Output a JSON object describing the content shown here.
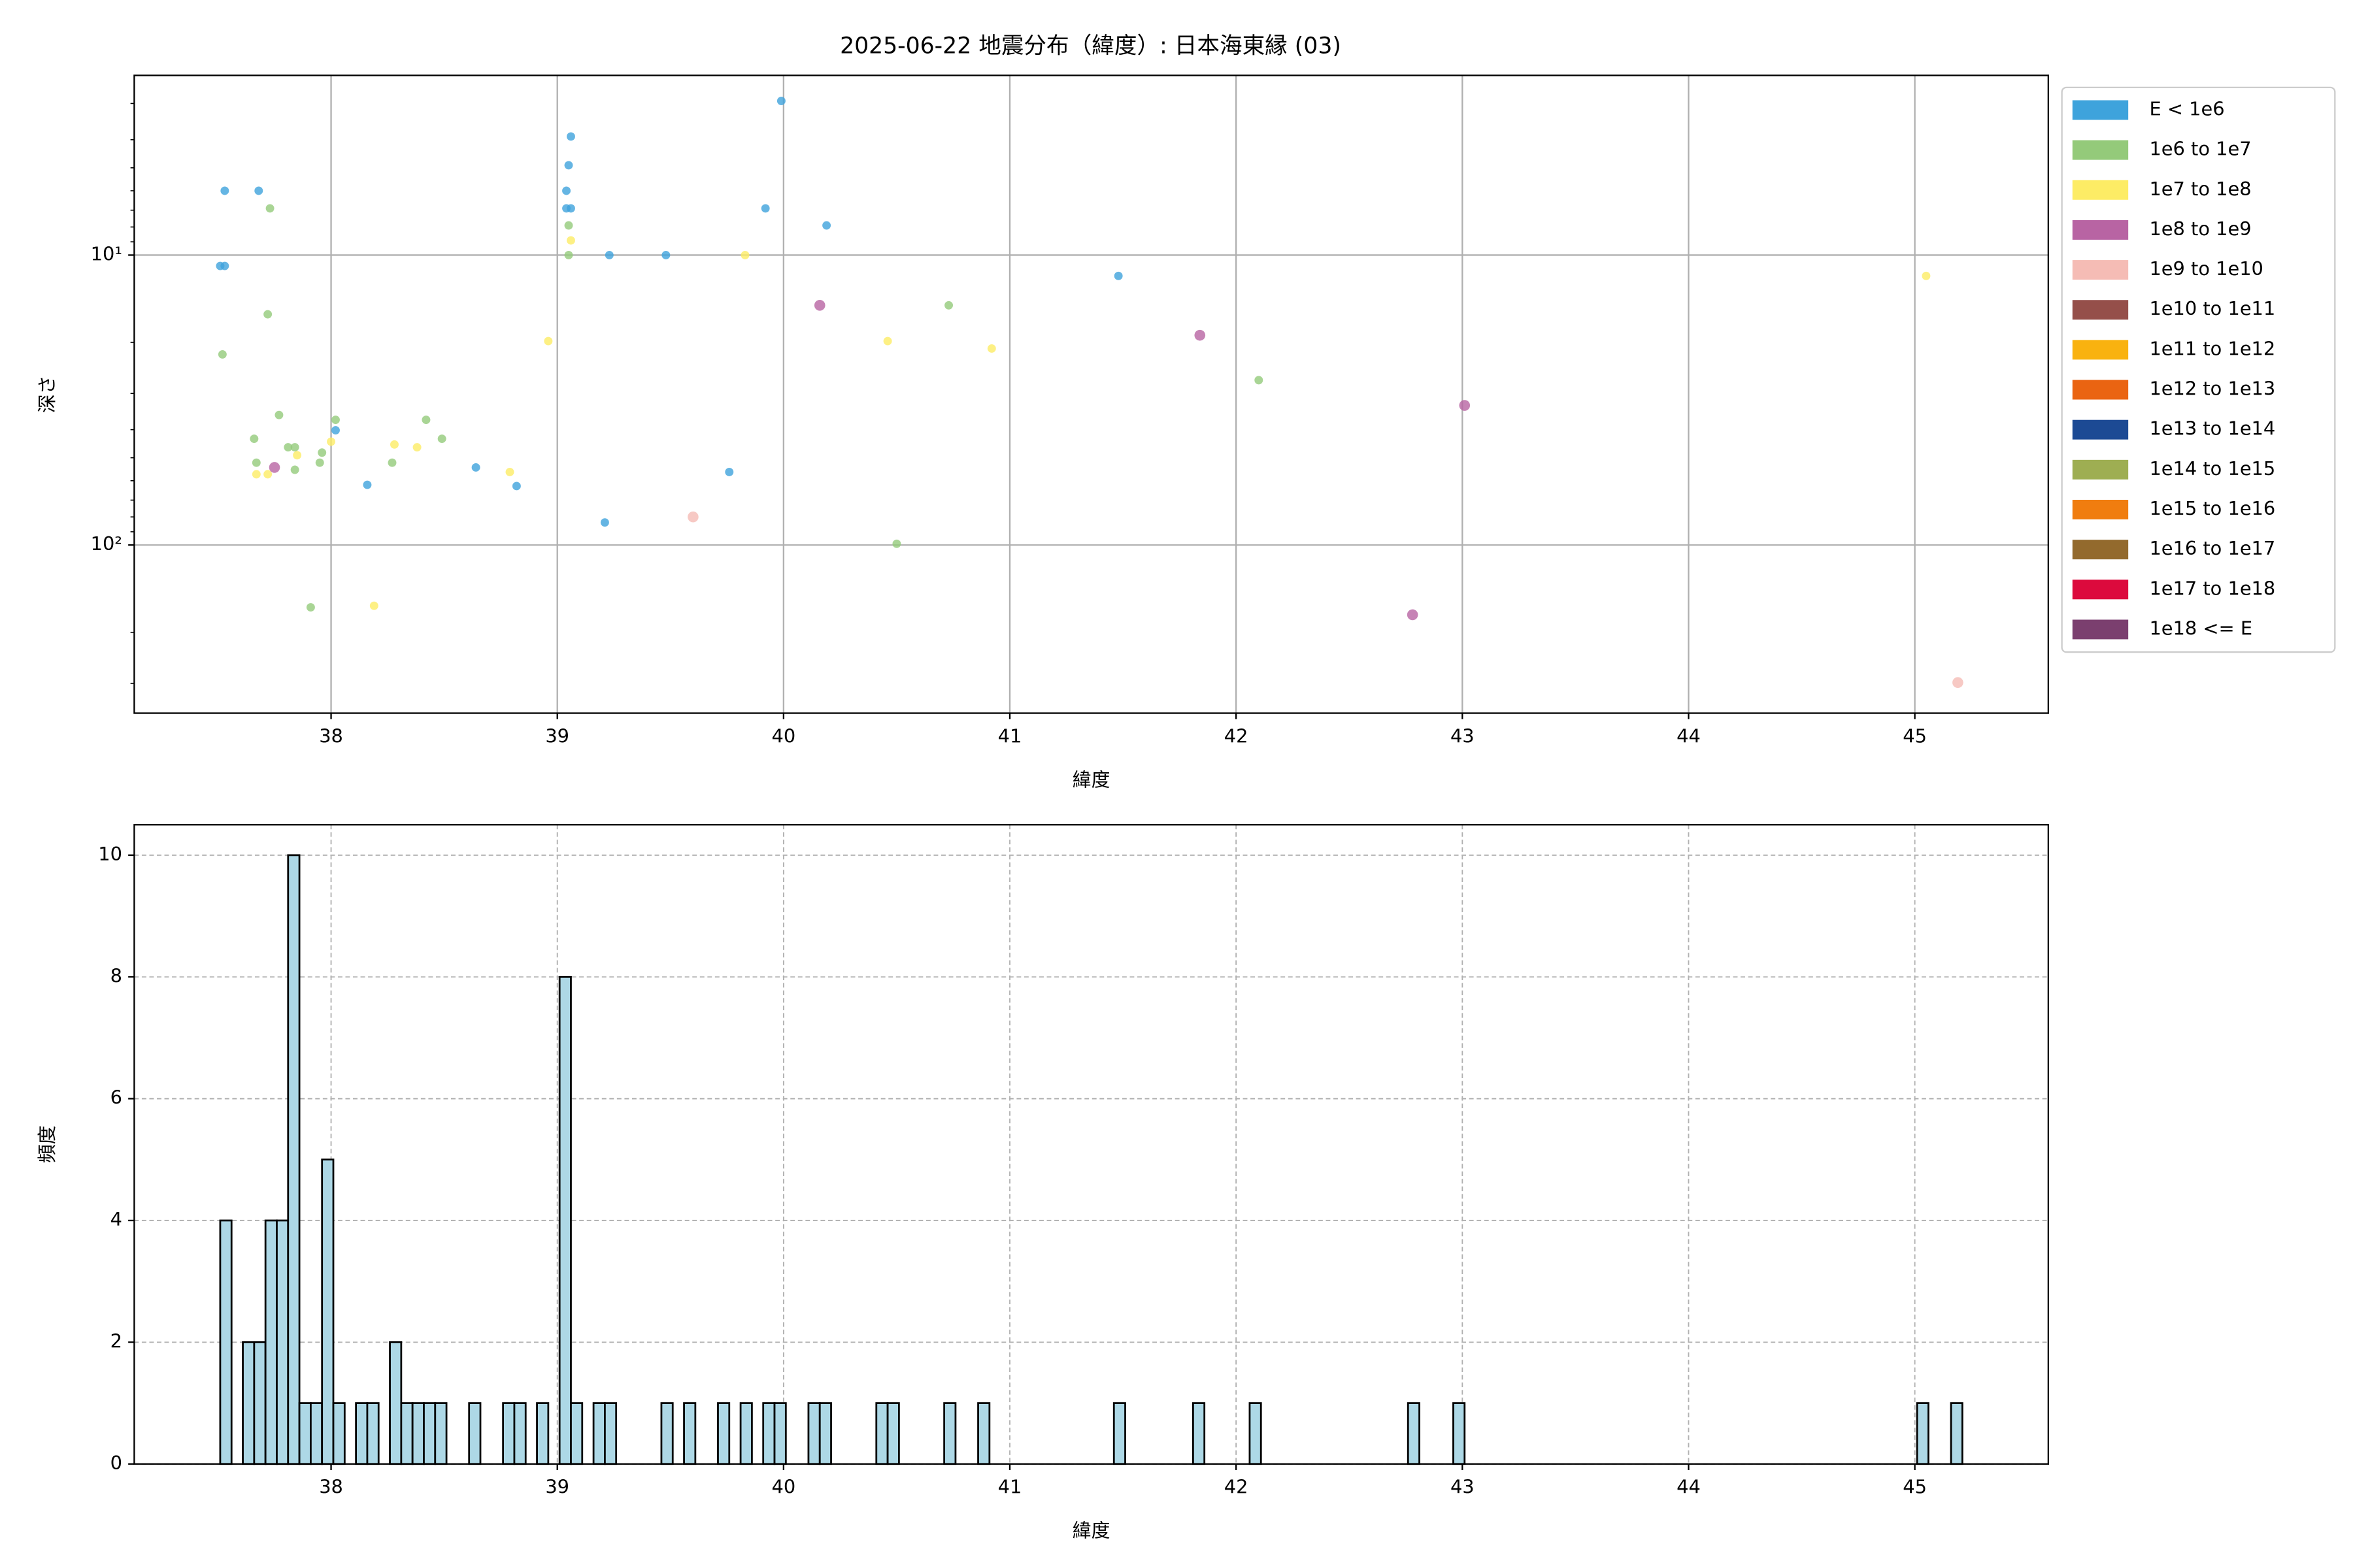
{
  "chart_data": [
    {
      "type": "scatter",
      "title": "2025-06-22 地震分布（緯度）: 日本海東縁 (03)",
      "x_label": "緯度",
      "y_label": "深さ",
      "xlim": [
        37.13,
        45.59
      ],
      "xticks": [
        38,
        39,
        40,
        41,
        42,
        43,
        44,
        45
      ],
      "ylim": [
        2.4,
        380
      ],
      "y_inverted": true,
      "y_log": true,
      "yticks": [
        {
          "value": 10,
          "label": "10¹"
        },
        {
          "value": 100,
          "label": "10²"
        }
      ],
      "yminorticks": [
        3,
        4,
        5,
        6,
        7,
        8,
        9,
        20,
        30,
        40,
        50,
        60,
        70,
        80,
        90,
        200,
        300
      ],
      "grid": true,
      "legend": "outside upper right",
      "series": [
        {
          "name": "E < 1e6",
          "color": "#3ea3dc",
          "x": [
            37.53,
            37.51,
            37.53,
            37.68,
            38.02,
            38.16,
            38.64,
            38.82,
            39.04,
            39.04,
            39.06,
            39.05,
            39.06,
            39.21,
            39.23,
            39.48,
            39.76,
            39.92,
            39.99,
            40.19,
            41.48
          ],
          "values": [
            6.0,
            10.9,
            10.9,
            6.0,
            40.2,
            62,
            54,
            62.6,
            6.0,
            6.9,
            6.9,
            4.9,
            3.9,
            83.6,
            10,
            10,
            56,
            6.9,
            2.94,
            7.9,
            11.8
          ]
        },
        {
          "name": "1e6 to 1e7",
          "color": "#94ca7a",
          "x": [
            37.52,
            37.66,
            37.67,
            37.72,
            37.73,
            37.77,
            37.81,
            37.84,
            37.84,
            37.95,
            37.96,
            38.02,
            38.27,
            38.42,
            38.49,
            37.91,
            39.05,
            39.05,
            40.5,
            40.73,
            42.1
          ],
          "values": [
            22,
            43,
            52,
            16,
            6.9,
            35.6,
            46,
            46,
            55,
            52,
            48,
            37,
            52,
            37,
            43,
            164,
            7.9,
            10,
            99,
            14.9,
            27
          ]
        },
        {
          "name": "1e7 to 1e8",
          "color": "#fdec65",
          "x": [
            37.67,
            37.72,
            37.85,
            38.0,
            38.19,
            38.28,
            38.38,
            38.79,
            38.96,
            39.06,
            39.83,
            40.46,
            40.92,
            45.05
          ],
          "values": [
            57,
            57,
            49,
            44,
            162,
            45,
            46,
            56,
            19.8,
            8.9,
            10,
            19.8,
            21,
            11.8
          ]
        },
        {
          "name": "1e8 to 1e9",
          "color": "#b864a3",
          "x": [
            37.75,
            40.16,
            41.84,
            43.01,
            42.78
          ],
          "values": [
            54,
            14.9,
            18.9,
            33,
            174
          ]
        },
        {
          "name": "1e9 to 1e10",
          "color": "#f5bcb5",
          "x": [
            39.6,
            45.19
          ],
          "values": [
            80,
            298
          ]
        },
        {
          "name": "1e10 to 1e11",
          "color": "#954f4a",
          "x": [],
          "values": []
        },
        {
          "name": "1e11 to 1e12",
          "color": "#f9b20f",
          "x": [],
          "values": []
        },
        {
          "name": "1e12 to 1e13",
          "color": "#ea6412",
          "x": [],
          "values": []
        },
        {
          "name": "1e13 to 1e14",
          "color": "#1c4a94",
          "x": [],
          "values": []
        },
        {
          "name": "1e14 to 1e15",
          "color": "#9eae52",
          "x": [],
          "values": []
        },
        {
          "name": "1e15 to 1e16",
          "color": "#f07d0f",
          "x": [],
          "values": []
        },
        {
          "name": "1e16 to 1e17",
          "color": "#936a2d",
          "x": [],
          "values": []
        },
        {
          "name": "1e17 to 1e18",
          "color": "#dc0a3d",
          "x": [],
          "values": []
        },
        {
          "name": "1e18 <= E",
          "color": "#7b3f6f",
          "x": [],
          "values": []
        }
      ]
    },
    {
      "type": "histogram",
      "x_label": "緯度",
      "y_label": "頻度",
      "color": "#add8e6",
      "edge_color": "#000000",
      "xlim": [
        37.13,
        45.59
      ],
      "xticks": [
        38,
        39,
        40,
        41,
        42,
        43,
        44,
        45
      ],
      "ylim": [
        0,
        10.5
      ],
      "yticks": [
        0,
        2,
        4,
        6,
        8,
        10
      ],
      "grid": true,
      "bins": [
        37.51,
        37.56,
        37.61,
        37.66,
        37.71,
        37.76,
        37.81,
        37.86,
        37.91,
        37.96,
        38.01,
        38.06,
        38.11,
        38.16,
        38.21,
        38.26,
        38.31,
        38.36,
        38.41,
        38.46,
        38.51,
        38.56,
        38.61,
        38.66,
        38.71,
        38.76,
        38.81,
        38.86,
        38.91,
        38.96,
        39.01,
        39.06,
        39.11,
        39.16,
        39.21,
        39.26,
        39.31,
        39.36,
        39.41,
        39.46,
        39.51,
        39.56,
        39.61,
        39.66,
        39.71,
        39.76,
        39.81,
        39.86,
        39.91,
        39.96,
        40.01,
        40.06,
        40.11,
        40.16,
        40.21,
        40.26,
        40.31,
        40.36,
        40.41,
        40.46,
        40.51,
        40.56,
        40.61,
        40.66,
        40.71,
        40.76,
        40.81,
        40.86,
        40.91,
        40.96,
        41.01,
        41.06,
        41.11,
        41.16,
        41.21,
        41.26,
        41.31,
        41.36,
        41.41,
        41.46,
        41.51,
        41.56,
        41.61,
        41.66,
        41.71,
        41.76,
        41.81,
        41.86,
        41.91,
        41.96,
        42.01,
        42.06,
        42.11,
        42.16,
        42.21,
        42.26,
        42.31,
        42.36,
        42.41,
        42.46,
        42.51,
        42.56,
        42.61,
        42.66,
        42.71,
        42.76,
        42.81,
        42.86,
        42.91,
        42.96,
        43.01,
        43.06,
        43.11,
        43.16,
        43.21,
        43.26,
        43.31,
        43.36,
        43.41,
        43.46,
        43.51,
        43.56,
        43.61,
        43.66,
        43.71,
        43.76,
        43.81,
        43.86,
        43.91,
        43.96,
        44.01,
        44.06,
        44.11,
        44.16,
        44.21,
        44.26,
        44.31,
        44.36,
        44.41,
        44.46,
        44.51,
        44.56,
        44.61,
        44.66,
        44.71,
        44.76,
        44.81,
        44.86,
        44.91,
        44.96,
        45.01,
        45.06,
        45.11,
        45.16,
        45.21
      ],
      "values": [
        4,
        0,
        2,
        2,
        4,
        4,
        10,
        1,
        1,
        5,
        1,
        0,
        1,
        1,
        0,
        2,
        1,
        1,
        1,
        1,
        0,
        0,
        1,
        0,
        0,
        1,
        1,
        0,
        1,
        0,
        8,
        1,
        0,
        1,
        1,
        0,
        0,
        0,
        0,
        1,
        0,
        1,
        0,
        0,
        1,
        0,
        1,
        0,
        1,
        1,
        0,
        0,
        1,
        1,
        0,
        0,
        0,
        0,
        1,
        1,
        0,
        0,
        0,
        0,
        1,
        0,
        0,
        1,
        0,
        0,
        0,
        0,
        0,
        0,
        0,
        0,
        0,
        0,
        0,
        1,
        0,
        0,
        0,
        0,
        0,
        0,
        1,
        0,
        0,
        0,
        0,
        1,
        0,
        0,
        0,
        0,
        0,
        0,
        0,
        0,
        0,
        0,
        0,
        0,
        0,
        1,
        0,
        0,
        0,
        1,
        0,
        0,
        0,
        0,
        0,
        0,
        0,
        0,
        0,
        0,
        0,
        0,
        0,
        0,
        0,
        0,
        0,
        0,
        0,
        0,
        0,
        0,
        0,
        0,
        0,
        0,
        0,
        0,
        0,
        0,
        0,
        0,
        0,
        0,
        0,
        0,
        0,
        0,
        0,
        0,
        1,
        0,
        0,
        1
      ]
    }
  ]
}
